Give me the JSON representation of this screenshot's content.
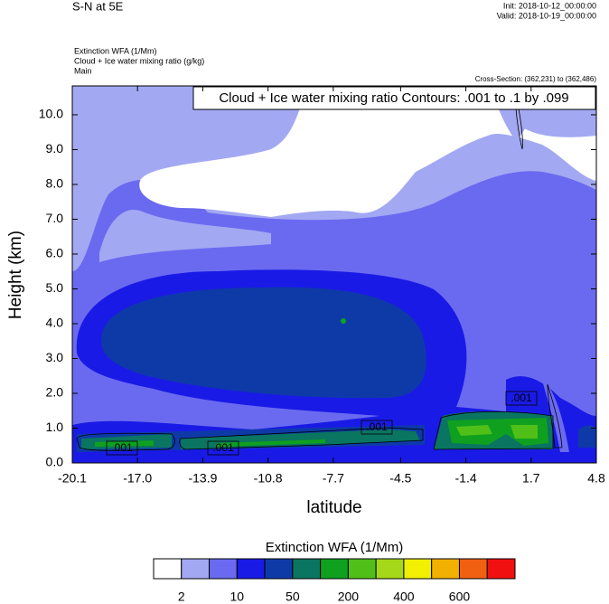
{
  "chart_data": {
    "type": "contour",
    "title": "S-N at 5E",
    "init": "Init: 2018-10-12_00:00:00",
    "valid": "Valid: 2018-10-19_00:00:00",
    "fields": [
      "Extinction WFA   (1/Mm)",
      "Cloud + Ice water mixing ratio   (g/kg)",
      "Main"
    ],
    "cross_section": "Cross-Section: (362,231) to (362,486)",
    "contour_info": "Cloud + Ice water mixing ratio Contours: .001 to .1 by .099",
    "contour_labels": [
      ".001",
      ".001",
      ".001",
      ".001",
      ".001"
    ],
    "x_label": "latitude",
    "y_label": "Height (km)",
    "xlim": [
      -20.1,
      4.8
    ],
    "xticks": [
      {
        "value": -20.1,
        "label": "-20.1"
      },
      {
        "value": -17.0,
        "label": "-17.0"
      },
      {
        "value": -13.9,
        "label": "-13.9"
      },
      {
        "value": -10.8,
        "label": "-10.8"
      },
      {
        "value": -7.7,
        "label": "-7.7"
      },
      {
        "value": -4.5,
        "label": "-4.5"
      },
      {
        "value": -1.4,
        "label": "-1.4"
      },
      {
        "value": 1.7,
        "label": "1.7"
      },
      {
        "value": 4.8,
        "label": "4.8"
      }
    ],
    "ylim": [
      0,
      10.83
    ],
    "yticks": [
      {
        "value": 0,
        "label": "0.0"
      },
      {
        "value": 1,
        "label": "1.0"
      },
      {
        "value": 2,
        "label": "2.0"
      },
      {
        "value": 3,
        "label": "3.0"
      },
      {
        "value": 4,
        "label": "4.0"
      },
      {
        "value": 5,
        "label": "5.0"
      },
      {
        "value": 6,
        "label": "6.0"
      },
      {
        "value": 7,
        "label": "7.0"
      },
      {
        "value": 8,
        "label": "8.0"
      },
      {
        "value": 9,
        "label": "9.0"
      },
      {
        "value": 10,
        "label": "10.0"
      }
    ],
    "colorbar": {
      "title": "Extinction WFA  (1/Mm)",
      "colors": [
        "#ffffff",
        "#a3a8f2",
        "#6a6af0",
        "#1a1ae6",
        "#0e3aa8",
        "#0a7560",
        "#10a020",
        "#50c018",
        "#a6d81a",
        "#f0f000",
        "#f2b000",
        "#f06010",
        "#f01010"
      ],
      "ticks": [
        2,
        10,
        50,
        200,
        400,
        600
      ]
    }
  }
}
